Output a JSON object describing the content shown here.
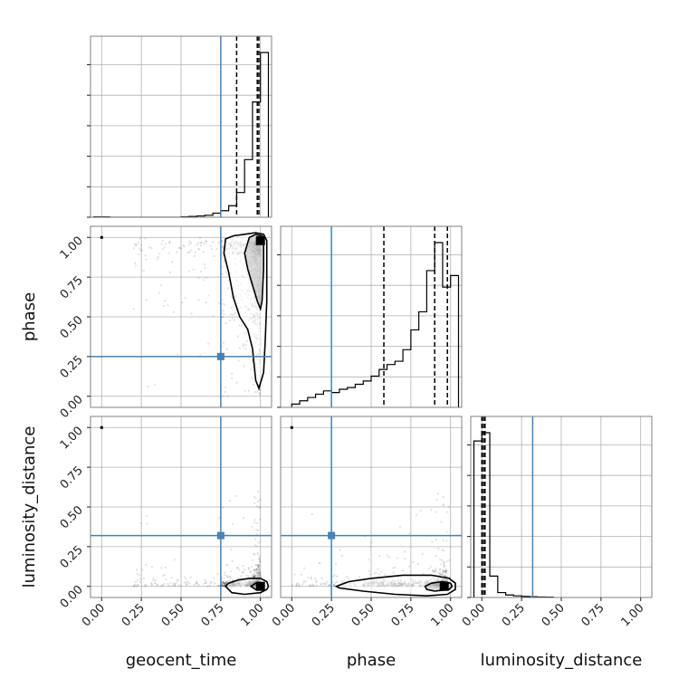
{
  "chart_data": {
    "type": "corner",
    "parameters": [
      "geocent_time",
      "phase",
      "luminosity_distance"
    ],
    "range": [
      -0.07,
      1.07
    ],
    "ticks": [
      "0.00",
      "0.25",
      "0.50",
      "0.75",
      "1.00"
    ],
    "tick_values": [
      0,
      0.25,
      0.5,
      0.75,
      1.0
    ],
    "grid": true,
    "colors": {
      "truth": "#4682b4",
      "hist": "#000000",
      "scatter": "#000000",
      "grid": "#b0b0b0",
      "frame": "#808080"
    },
    "truths": {
      "geocent_time": 0.75,
      "phase": 0.25,
      "luminosity_distance": 0.32
    },
    "quantiles": {
      "geocent_time": [
        0.85,
        0.98,
        0.99
      ],
      "phase": [
        0.58,
        0.9,
        0.98
      ],
      "luminosity_distance": [
        0.0,
        0.01,
        0.02
      ]
    },
    "histograms": {
      "geocent_time": {
        "bin_edges": [
          -0.05,
          0.0,
          0.05,
          0.1,
          0.15,
          0.2,
          0.25,
          0.3,
          0.35,
          0.4,
          0.45,
          0.5,
          0.55,
          0.6,
          0.65,
          0.7,
          0.75,
          0.8,
          0.85,
          0.9,
          0.95,
          1.0,
          1.05
        ],
        "values": [
          0.002,
          0.002,
          0.0,
          0.0,
          0.0,
          0.0,
          0.0,
          0.0,
          0.0,
          0.0,
          0.0,
          0.003,
          0.005,
          0.008,
          0.012,
          0.025,
          0.04,
          0.07,
          0.15,
          0.35,
          0.7,
          1.0
        ]
      },
      "phase": {
        "bin_edges": [
          0.0,
          0.05,
          0.1,
          0.15,
          0.2,
          0.25,
          0.3,
          0.35,
          0.4,
          0.45,
          0.5,
          0.55,
          0.6,
          0.65,
          0.7,
          0.75,
          0.8,
          0.85,
          0.9,
          0.95,
          1.0,
          1.05
        ],
        "values": [
          0.02,
          0.04,
          0.06,
          0.08,
          0.1,
          0.09,
          0.11,
          0.12,
          0.14,
          0.16,
          0.19,
          0.23,
          0.26,
          0.28,
          0.35,
          0.47,
          0.58,
          0.83,
          1.0,
          0.73,
          0.8
        ]
      },
      "luminosity_distance": {
        "bin_edges": [
          -0.05,
          0.0,
          0.05,
          0.1,
          0.15,
          0.2,
          0.25,
          0.3,
          0.35,
          0.4,
          0.45
        ],
        "values": [
          0.95,
          1.0,
          0.13,
          0.03,
          0.015,
          0.01,
          0.006,
          0.004,
          0.003,
          0.002
        ]
      }
    },
    "pairs": [
      {
        "x": "geocent_time",
        "y": "phase",
        "samples_hint": "dense near x=1.0, y spread 0.1-1.0",
        "contours": [
          [
            [
              0.78,
              0.99
            ],
            [
              0.83,
              1.01
            ],
            [
              0.9,
              1.02
            ],
            [
              0.97,
              1.03
            ],
            [
              1.02,
              1.02
            ],
            [
              1.04,
              0.98
            ],
            [
              1.04,
              0.88
            ],
            [
              1.04,
              0.6
            ],
            [
              1.03,
              0.35
            ],
            [
              1.02,
              0.15
            ],
            [
              0.99,
              0.05
            ],
            [
              0.97,
              0.1
            ],
            [
              0.95,
              0.3
            ],
            [
              0.92,
              0.42
            ],
            [
              0.87,
              0.5
            ],
            [
              0.83,
              0.62
            ],
            [
              0.8,
              0.78
            ],
            [
              0.77,
              0.9
            ],
            [
              0.78,
              0.99
            ]
          ],
          [
            [
              0.93,
              1.0
            ],
            [
              0.97,
              1.02
            ],
            [
              1.01,
              1.01
            ],
            [
              1.02,
              0.95
            ],
            [
              1.02,
              0.8
            ],
            [
              1.01,
              0.6
            ],
            [
              1.0,
              0.55
            ],
            [
              0.98,
              0.6
            ],
            [
              0.95,
              0.7
            ],
            [
              0.92,
              0.8
            ],
            [
              0.9,
              0.9
            ],
            [
              0.93,
              1.0
            ]
          ]
        ],
        "peak": [
          1.0,
          0.98
        ]
      },
      {
        "x": "geocent_time",
        "y": "luminosity_distance",
        "samples_hint": "dense near y=0.0, x spread 0.2-1.0",
        "contours": [
          [
            [
              0.78,
              0.0
            ],
            [
              0.8,
              0.02
            ],
            [
              0.86,
              0.04
            ],
            [
              0.93,
              0.05
            ],
            [
              1.0,
              0.05
            ],
            [
              1.04,
              0.03
            ],
            [
              1.05,
              0.0
            ],
            [
              1.04,
              -0.02
            ],
            [
              1.0,
              -0.04
            ],
            [
              0.9,
              -0.05
            ],
            [
              0.82,
              -0.04
            ],
            [
              0.78,
              0.0
            ]
          ],
          [
            [
              0.94,
              0.0
            ],
            [
              0.97,
              0.02
            ],
            [
              1.01,
              0.02
            ],
            [
              1.02,
              0.0
            ],
            [
              1.01,
              -0.02
            ],
            [
              0.97,
              -0.02
            ],
            [
              0.94,
              0.0
            ]
          ]
        ],
        "peak": [
          1.0,
          0.0
        ]
      },
      {
        "x": "phase",
        "y": "luminosity_distance",
        "samples_hint": "dense near y=0.0, x spread 0.0-1.0",
        "contours": [
          [
            [
              0.28,
              0.0
            ],
            [
              0.36,
              0.03
            ],
            [
              0.5,
              0.05
            ],
            [
              0.7,
              0.07
            ],
            [
              0.88,
              0.07
            ],
            [
              0.99,
              0.05
            ],
            [
              1.03,
              0.02
            ],
            [
              1.03,
              -0.02
            ],
            [
              0.98,
              -0.05
            ],
            [
              0.85,
              -0.06
            ],
            [
              0.65,
              -0.05
            ],
            [
              0.45,
              -0.03
            ],
            [
              0.3,
              -0.01
            ],
            [
              0.28,
              0.0
            ]
          ],
          [
            [
              0.84,
              0.0
            ],
            [
              0.88,
              0.02
            ],
            [
              0.95,
              0.03
            ],
            [
              1.0,
              0.02
            ],
            [
              1.01,
              0.0
            ],
            [
              0.99,
              -0.02
            ],
            [
              0.9,
              -0.03
            ],
            [
              0.85,
              -0.02
            ],
            [
              0.84,
              0.0
            ]
          ]
        ],
        "peak": [
          0.96,
          0.0
        ]
      }
    ]
  }
}
